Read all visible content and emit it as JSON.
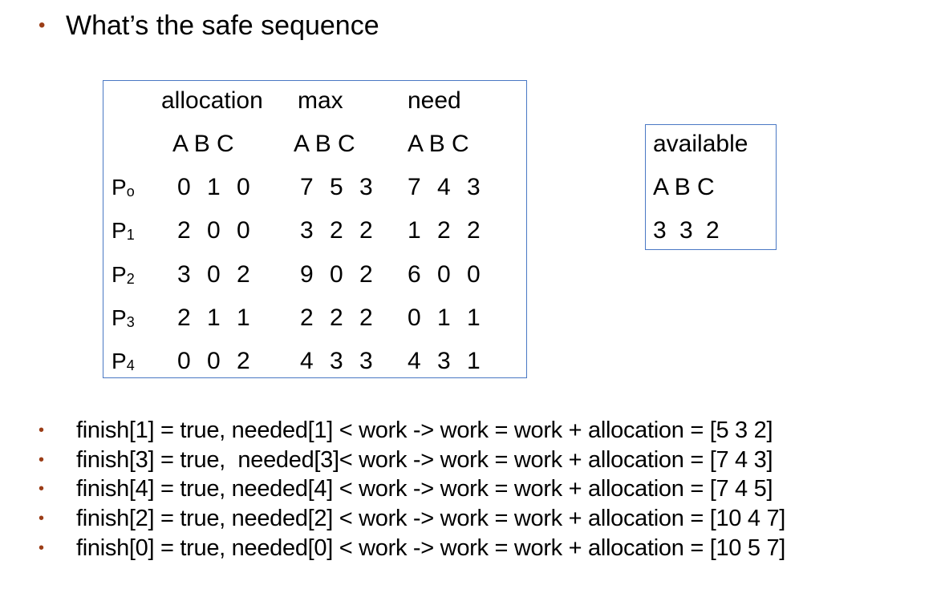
{
  "title": "What’s the safe sequence",
  "table": {
    "headers": [
      "allocation",
      "max",
      "need"
    ],
    "subheaders": [
      "A B C",
      "A B C",
      "A B C"
    ],
    "rows": [
      {
        "process_base": "P",
        "process_index": "o",
        "allocation": "0 1 0",
        "max": "7 5 3",
        "need": "7 4 3"
      },
      {
        "process_base": "P",
        "process_index": "1",
        "allocation": "2 0 0",
        "max": "3 2 2",
        "need": "1 2 2"
      },
      {
        "process_base": "P",
        "process_index": "2",
        "allocation": "3 0 2",
        "max": "9 0 2",
        "need": "6 0 0"
      },
      {
        "process_base": "P",
        "process_index": "3",
        "allocation": "2 1 1",
        "max": "2 2 2",
        "need": "0 1 1"
      },
      {
        "process_base": "P",
        "process_index": "4",
        "allocation": "0 0 2",
        "max": "4 3 3",
        "need": "4 3 1"
      }
    ]
  },
  "available": {
    "label": "available",
    "columns": "A B C",
    "values": "3 3 2"
  },
  "steps": [
    "finish[1] = true, needed[1] < work -> work = work + allocation = [5 3 2]",
    "finish[3] = true,  needed[3]< work -> work = work + allocation = [7 4 3]",
    "finish[4] = true, needed[4] < work -> work = work + allocation = [7 4 5]",
    "finish[2] = true, needed[2] < work -> work = work + allocation = [10 4 7]",
    "finish[0] = true, needed[0] < work -> work = work + allocation = [10 5 7]"
  ],
  "colors": {
    "bullet": "#9b3d17",
    "border": "#4a78c4",
    "text": "#000000"
  }
}
